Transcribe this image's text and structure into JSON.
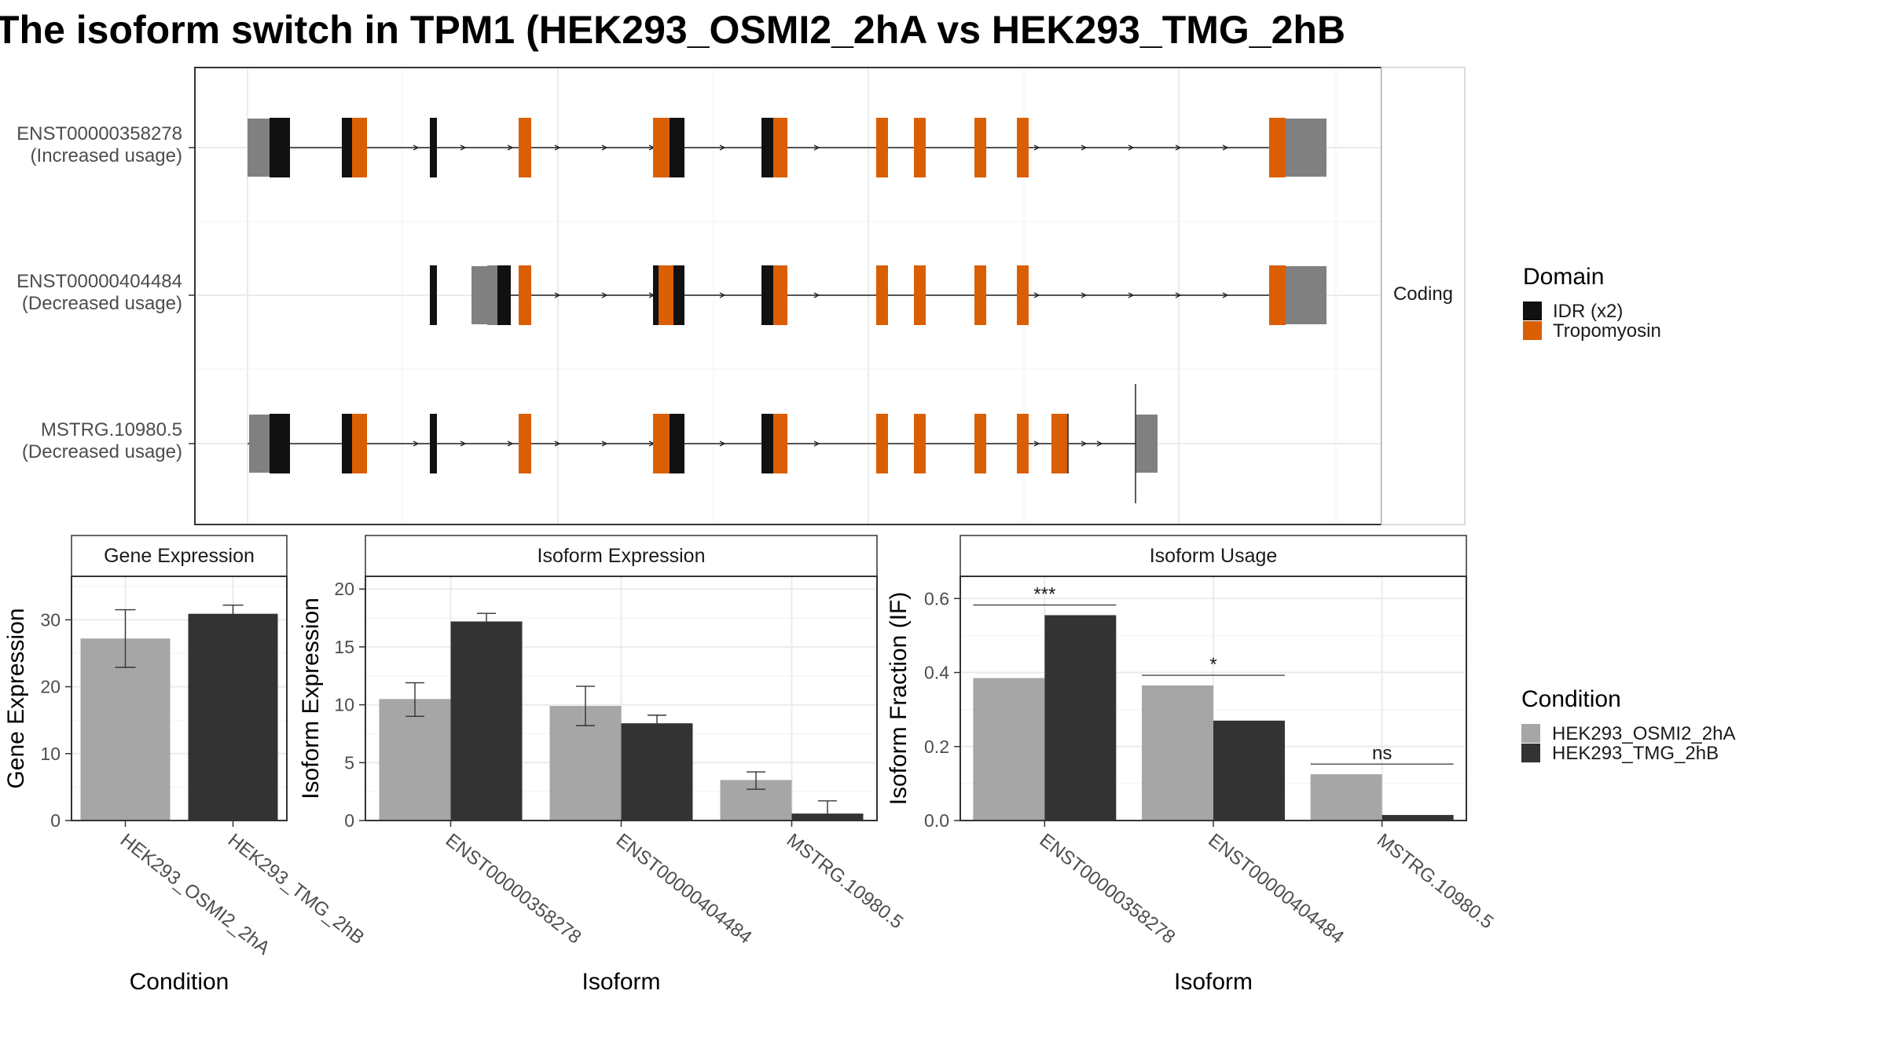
{
  "title": "The isoform switch in TPM1 (HEK293_OSMI2_2hA vs HEK293_TMG_2hB",
  "transcript_panel": {
    "facet_label": "Coding",
    "isoforms": [
      {
        "id": "ENST00000358278",
        "note": "(Increased usage)"
      },
      {
        "id": "ENST00000404484",
        "note": "(Decreased usage)"
      },
      {
        "id": "MSTRG.10980.5",
        "note": "(Decreased usage)"
      }
    ]
  },
  "legend_domain": {
    "title": "Domain",
    "items": [
      {
        "label": "IDR (x2)",
        "color": "#111111"
      },
      {
        "label": "Tropomyosin",
        "color": "#d95f02"
      }
    ]
  },
  "legend_condition": {
    "title": "Condition",
    "items": [
      {
        "label": "HEK293_OSMI2_2hA",
        "color": "#a6a6a6"
      },
      {
        "label": "HEK293_TMG_2hB",
        "color": "#333333"
      }
    ]
  },
  "colors": {
    "utr": "#808080",
    "idr": "#111111",
    "tropomyosin": "#d95f02",
    "cond_a": "#a6a6a6",
    "cond_b": "#333333"
  },
  "chart_data": [
    {
      "type": "bar",
      "title": "Gene Expression",
      "xlabel": "Condition",
      "ylabel": "Gene Expression",
      "categories": [
        "HEK293_OSMI2_2hA",
        "HEK293_TMG_2hB"
      ],
      "values": [
        27.2,
        30.9
      ],
      "errors": [
        [
          22.9,
          31.5
        ],
        [
          29.6,
          32.2
        ]
      ],
      "yticks": [
        0,
        10,
        20,
        30
      ],
      "ylim": [
        0,
        36.5
      ]
    },
    {
      "type": "bar",
      "title": "Isoform Expression",
      "xlabel": "Isoform",
      "ylabel": "Isoform Expression",
      "categories": [
        "ENST00000358278",
        "ENST00000404484",
        "MSTRG.10980.5"
      ],
      "series": [
        {
          "name": "HEK293_OSMI2_2hA",
          "values": [
            10.5,
            9.9,
            3.5
          ],
          "errors": [
            [
              9.0,
              11.9
            ],
            [
              8.2,
              11.6
            ],
            [
              2.7,
              4.2
            ]
          ]
        },
        {
          "name": "HEK293_TMG_2hB",
          "values": [
            17.2,
            8.4,
            0.6
          ],
          "errors": [
            [
              16.5,
              17.9
            ],
            [
              7.7,
              9.1
            ],
            [
              0.0,
              1.7
            ]
          ]
        }
      ],
      "yticks": [
        0,
        5,
        10,
        15,
        20
      ],
      "ylim": [
        0,
        21.1
      ]
    },
    {
      "type": "bar",
      "title": "Isoform Usage",
      "xlabel": "Isoform",
      "ylabel": "Isoform Fraction (IF)",
      "categories": [
        "ENST00000358278",
        "ENST00000404484",
        "MSTRG.10980.5"
      ],
      "series": [
        {
          "name": "HEK293_OSMI2_2hA",
          "values": [
            0.385,
            0.365,
            0.125
          ]
        },
        {
          "name": "HEK293_TMG_2hB",
          "values": [
            0.555,
            0.27,
            0.015
          ]
        }
      ],
      "significance": [
        "***",
        "*",
        "ns"
      ],
      "yticks": [
        "0.0",
        "0.2",
        "0.4",
        "0.6"
      ],
      "ylim": [
        0,
        0.66
      ]
    }
  ]
}
